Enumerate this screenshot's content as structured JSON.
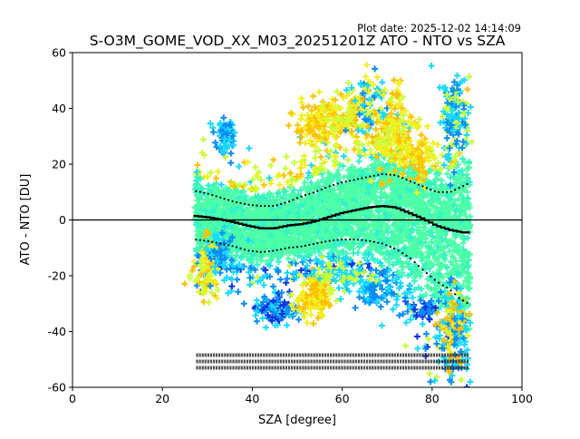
{
  "plot_date": "Plot date: 2025-12-02 14:14:09",
  "chart_data": {
    "type": "scatter",
    "title": "S-O3M_GOME_VOD_XX_M03_20251201Z ATO - NTO vs SZA",
    "xlabel": "SZA [degree]",
    "ylabel": "ATO - NTO [DU]",
    "xlim": [
      0,
      100
    ],
    "ylim": [
      -60,
      60
    ],
    "x_ticks": [
      0,
      20,
      40,
      60,
      80,
      100
    ],
    "y_ticks": [
      -60,
      -40,
      -20,
      0,
      20,
      40,
      60
    ],
    "grid": false,
    "legend": "none",
    "zero_line": 0,
    "marker": "plus",
    "colors": {
      "cloud_core": "#4dffa6",
      "cloud_mid": "#33f2c8",
      "cyan": "#19d9ff",
      "blue": "#0a8cf5",
      "dark_blue": "#1030e0",
      "yellow_green": "#c8ff3a",
      "yellow": "#f0f020",
      "orange": "#ffc000",
      "stats": "#000000"
    },
    "mean_curve": {
      "x": [
        27,
        30,
        33,
        36,
        39,
        42,
        45,
        48,
        51,
        54,
        57,
        60,
        63,
        66,
        69,
        72,
        75,
        78,
        81,
        84,
        87,
        88
      ],
      "y": [
        1.5,
        1.0,
        0.2,
        -0.8,
        -2.0,
        -3.0,
        -3.0,
        -2.0,
        -1.5,
        -0.5,
        1.0,
        2.5,
        3.5,
        4.5,
        5.0,
        4.5,
        2.5,
        0.5,
        -2.0,
        -3.5,
        -4.5,
        -4.5
      ]
    },
    "upper_std_curve": {
      "x": [
        27,
        30,
        33,
        36,
        39,
        42,
        45,
        48,
        51,
        54,
        57,
        60,
        63,
        66,
        69,
        72,
        75,
        78,
        81,
        84,
        86,
        88
      ],
      "y": [
        10.5,
        9.5,
        8.0,
        6.5,
        5.5,
        5.0,
        5.0,
        6.5,
        8.5,
        10.0,
        12.0,
        13.5,
        14.5,
        15.5,
        16.5,
        16.0,
        14.0,
        12.0,
        10.0,
        10.0,
        11.5,
        13.0
      ]
    },
    "lower_std_curve": {
      "x": [
        27,
        30,
        33,
        36,
        39,
        42,
        45,
        48,
        51,
        54,
        57,
        60,
        63,
        66,
        69,
        72,
        75,
        78,
        81,
        84,
        86,
        88
      ],
      "y": [
        -7.0,
        -7.5,
        -8.5,
        -9.5,
        -11.0,
        -11.5,
        -11.0,
        -10.0,
        -9.5,
        -8.5,
        -7.5,
        -7.0,
        -7.0,
        -7.5,
        -8.5,
        -10.5,
        -13.5,
        -18.0,
        -22.0,
        -25.0,
        -28.0,
        -30.0
      ]
    }
  }
}
